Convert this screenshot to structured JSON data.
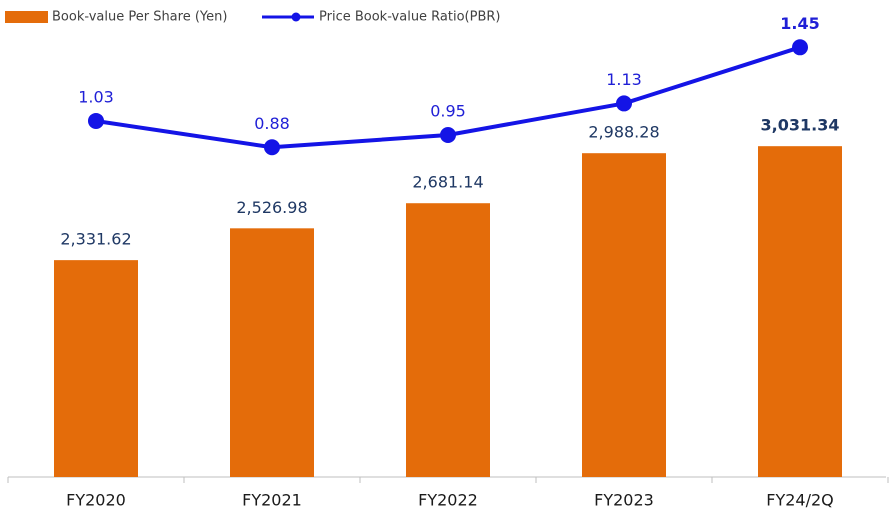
{
  "chart_data": {
    "type": "bar-line",
    "categories": [
      "FY2020",
      "FY2021",
      "FY2022",
      "FY2023",
      "FY24/2Q"
    ],
    "series": [
      {
        "name": "Book-value Per Share (Yen)",
        "type": "bar",
        "color": "#e46c0a",
        "values": [
          2331.62,
          2526.98,
          2681.14,
          2988.28,
          3031.34
        ],
        "value_labels": [
          "2,331.62",
          "2,526.98",
          "2,681.14",
          "2,988.28",
          "3,031.34"
        ]
      },
      {
        "name": "Price Book-value Ratio(PBR)",
        "type": "line",
        "axis": "y2",
        "color": "#1414e6",
        "values": [
          1.03,
          0.88,
          0.95,
          1.13,
          1.45
        ]
      }
    ],
    "ylim": [
      1000,
      3800
    ],
    "y2lim": [
      -1,
      1.6
    ]
  }
}
